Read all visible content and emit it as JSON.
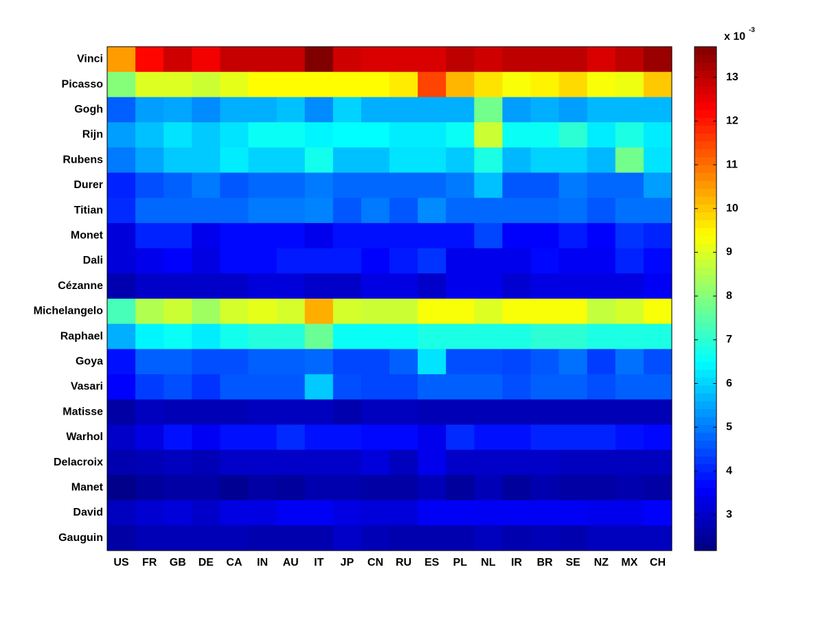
{
  "chart_data": {
    "type": "heatmap",
    "x_categories": [
      "US",
      "FR",
      "GB",
      "DE",
      "CA",
      "IN",
      "AU",
      "IT",
      "JP",
      "CN",
      "RU",
      "ES",
      "PL",
      "NL",
      "IR",
      "BR",
      "SE",
      "NZ",
      "MX",
      "CH"
    ],
    "y_categories": [
      "Vinci",
      "Picasso",
      "Gogh",
      "Rijn",
      "Rubens",
      "Durer",
      "Titian",
      "Monet",
      "Dali",
      "Cézanne",
      "Michelangelo",
      "Raphael",
      "Goya",
      "Vasari",
      "Matisse",
      "Warhol",
      "Delacroix",
      "Manet",
      "David",
      "Gauguin"
    ],
    "values": [
      [
        10.5,
        12.2,
        12.8,
        12.4,
        12.9,
        12.9,
        12.9,
        13.7,
        12.8,
        12.7,
        12.7,
        12.7,
        13.0,
        12.8,
        13.0,
        13.0,
        13.0,
        12.7,
        13.0,
        13.4
      ],
      [
        8.0,
        9.0,
        9.0,
        8.8,
        9.1,
        9.4,
        9.4,
        9.4,
        9.4,
        9.4,
        9.6,
        11.5,
        10.2,
        9.7,
        9.3,
        9.5,
        9.8,
        9.3,
        9.2,
        10.0
      ],
      [
        4.7,
        5.4,
        5.5,
        5.2,
        5.6,
        5.6,
        5.8,
        5.2,
        6.0,
        5.6,
        5.6,
        5.6,
        5.6,
        7.8,
        5.4,
        5.6,
        5.4,
        5.7,
        5.7,
        5.7
      ],
      [
        5.4,
        5.8,
        6.2,
        5.9,
        6.2,
        6.6,
        6.6,
        6.4,
        6.5,
        6.5,
        6.3,
        6.3,
        6.6,
        8.8,
        6.6,
        6.6,
        7.0,
        6.3,
        6.8,
        6.3
      ],
      [
        5.0,
        5.5,
        5.9,
        5.9,
        6.3,
        6.0,
        6.0,
        6.7,
        5.8,
        5.8,
        6.2,
        6.2,
        5.9,
        6.8,
        5.7,
        6.0,
        6.0,
        5.7,
        7.8,
        6.2
      ],
      [
        4.0,
        4.5,
        4.7,
        5.0,
        4.6,
        4.8,
        4.8,
        5.0,
        4.8,
        4.8,
        4.8,
        4.8,
        5.0,
        5.8,
        4.6,
        4.6,
        5.0,
        4.8,
        4.8,
        5.4
      ],
      [
        4.1,
        4.8,
        4.8,
        4.8,
        4.8,
        5.0,
        5.0,
        5.1,
        4.6,
        5.0,
        4.6,
        5.2,
        4.8,
        4.8,
        4.8,
        4.8,
        4.9,
        4.6,
        4.9,
        4.9
      ],
      [
        3.2,
        4.0,
        4.0,
        3.4,
        3.7,
        3.7,
        3.7,
        3.4,
        3.8,
        3.8,
        3.8,
        3.8,
        3.8,
        4.4,
        3.6,
        3.6,
        3.9,
        3.6,
        4.2,
        4.0
      ],
      [
        3.2,
        3.4,
        3.6,
        3.3,
        3.7,
        3.7,
        3.9,
        3.9,
        3.9,
        3.6,
        3.9,
        4.2,
        3.4,
        3.4,
        3.4,
        3.7,
        3.5,
        3.5,
        4.0,
        3.7
      ],
      [
        2.7,
        3.0,
        3.0,
        3.0,
        3.0,
        3.2,
        3.2,
        3.0,
        3.0,
        3.3,
        3.3,
        3.0,
        3.4,
        3.4,
        3.1,
        3.3,
        3.3,
        3.3,
        3.3,
        3.5
      ],
      [
        7.3,
        8.5,
        8.8,
        8.3,
        8.9,
        9.1,
        8.9,
        10.3,
        8.9,
        8.8,
        8.8,
        9.3,
        9.3,
        9.0,
        9.3,
        9.3,
        9.3,
        8.7,
        8.9,
        9.3
      ],
      [
        5.6,
        6.4,
        6.6,
        6.3,
        6.7,
        6.9,
        6.9,
        7.7,
        6.6,
        6.6,
        6.6,
        6.8,
        6.8,
        6.8,
        6.8,
        7.0,
        7.0,
        6.8,
        6.8,
        6.8
      ],
      [
        3.8,
        4.7,
        4.7,
        4.5,
        4.5,
        4.7,
        4.7,
        4.8,
        4.4,
        4.4,
        4.7,
        6.2,
        4.5,
        4.5,
        4.4,
        4.6,
        4.9,
        4.3,
        4.9,
        4.5
      ],
      [
        3.6,
        4.3,
        4.5,
        4.2,
        4.6,
        4.6,
        4.6,
        5.9,
        4.5,
        4.4,
        4.4,
        4.7,
        4.7,
        4.7,
        4.5,
        4.7,
        4.7,
        4.5,
        4.7,
        4.7
      ],
      [
        2.6,
        2.9,
        2.8,
        2.8,
        2.8,
        2.9,
        2.9,
        2.9,
        2.7,
        2.9,
        2.9,
        2.8,
        2.8,
        2.8,
        2.8,
        2.8,
        2.8,
        2.8,
        2.8,
        2.8
      ],
      [
        3.0,
        3.3,
        3.8,
        3.5,
        3.8,
        3.8,
        4.1,
        3.8,
        3.8,
        3.7,
        3.7,
        3.4,
        4.1,
        3.8,
        3.8,
        4.0,
        4.0,
        4.0,
        3.8,
        3.7
      ],
      [
        2.7,
        2.8,
        2.9,
        2.8,
        3.0,
        3.0,
        3.0,
        3.0,
        3.0,
        3.2,
        2.9,
        3.4,
        3.0,
        3.0,
        3.0,
        3.0,
        2.9,
        2.9,
        2.9,
        2.9
      ],
      [
        2.3,
        2.5,
        2.6,
        2.6,
        2.4,
        2.6,
        2.5,
        2.7,
        2.7,
        2.6,
        2.6,
        2.8,
        2.5,
        2.8,
        2.5,
        2.7,
        2.6,
        2.6,
        2.7,
        2.6
      ],
      [
        2.9,
        3.1,
        3.2,
        3.0,
        3.3,
        3.3,
        3.5,
        3.5,
        3.3,
        3.2,
        3.2,
        3.5,
        3.5,
        3.5,
        3.5,
        3.5,
        3.5,
        3.4,
        3.4,
        3.6
      ],
      [
        2.6,
        2.8,
        2.8,
        2.8,
        2.8,
        2.7,
        2.7,
        2.7,
        3.0,
        2.8,
        2.7,
        2.7,
        2.7,
        2.9,
        2.7,
        2.8,
        2.7,
        2.9,
        2.9,
        2.9
      ]
    ],
    "colormap": "jet",
    "clim": [
      2.18,
      13.7
    ],
    "colorbar_ticks": [
      3,
      4,
      5,
      6,
      7,
      8,
      9,
      10,
      11,
      12,
      13
    ],
    "colorbar_scale": {
      "base": "x 10",
      "exponent": "-3"
    }
  }
}
